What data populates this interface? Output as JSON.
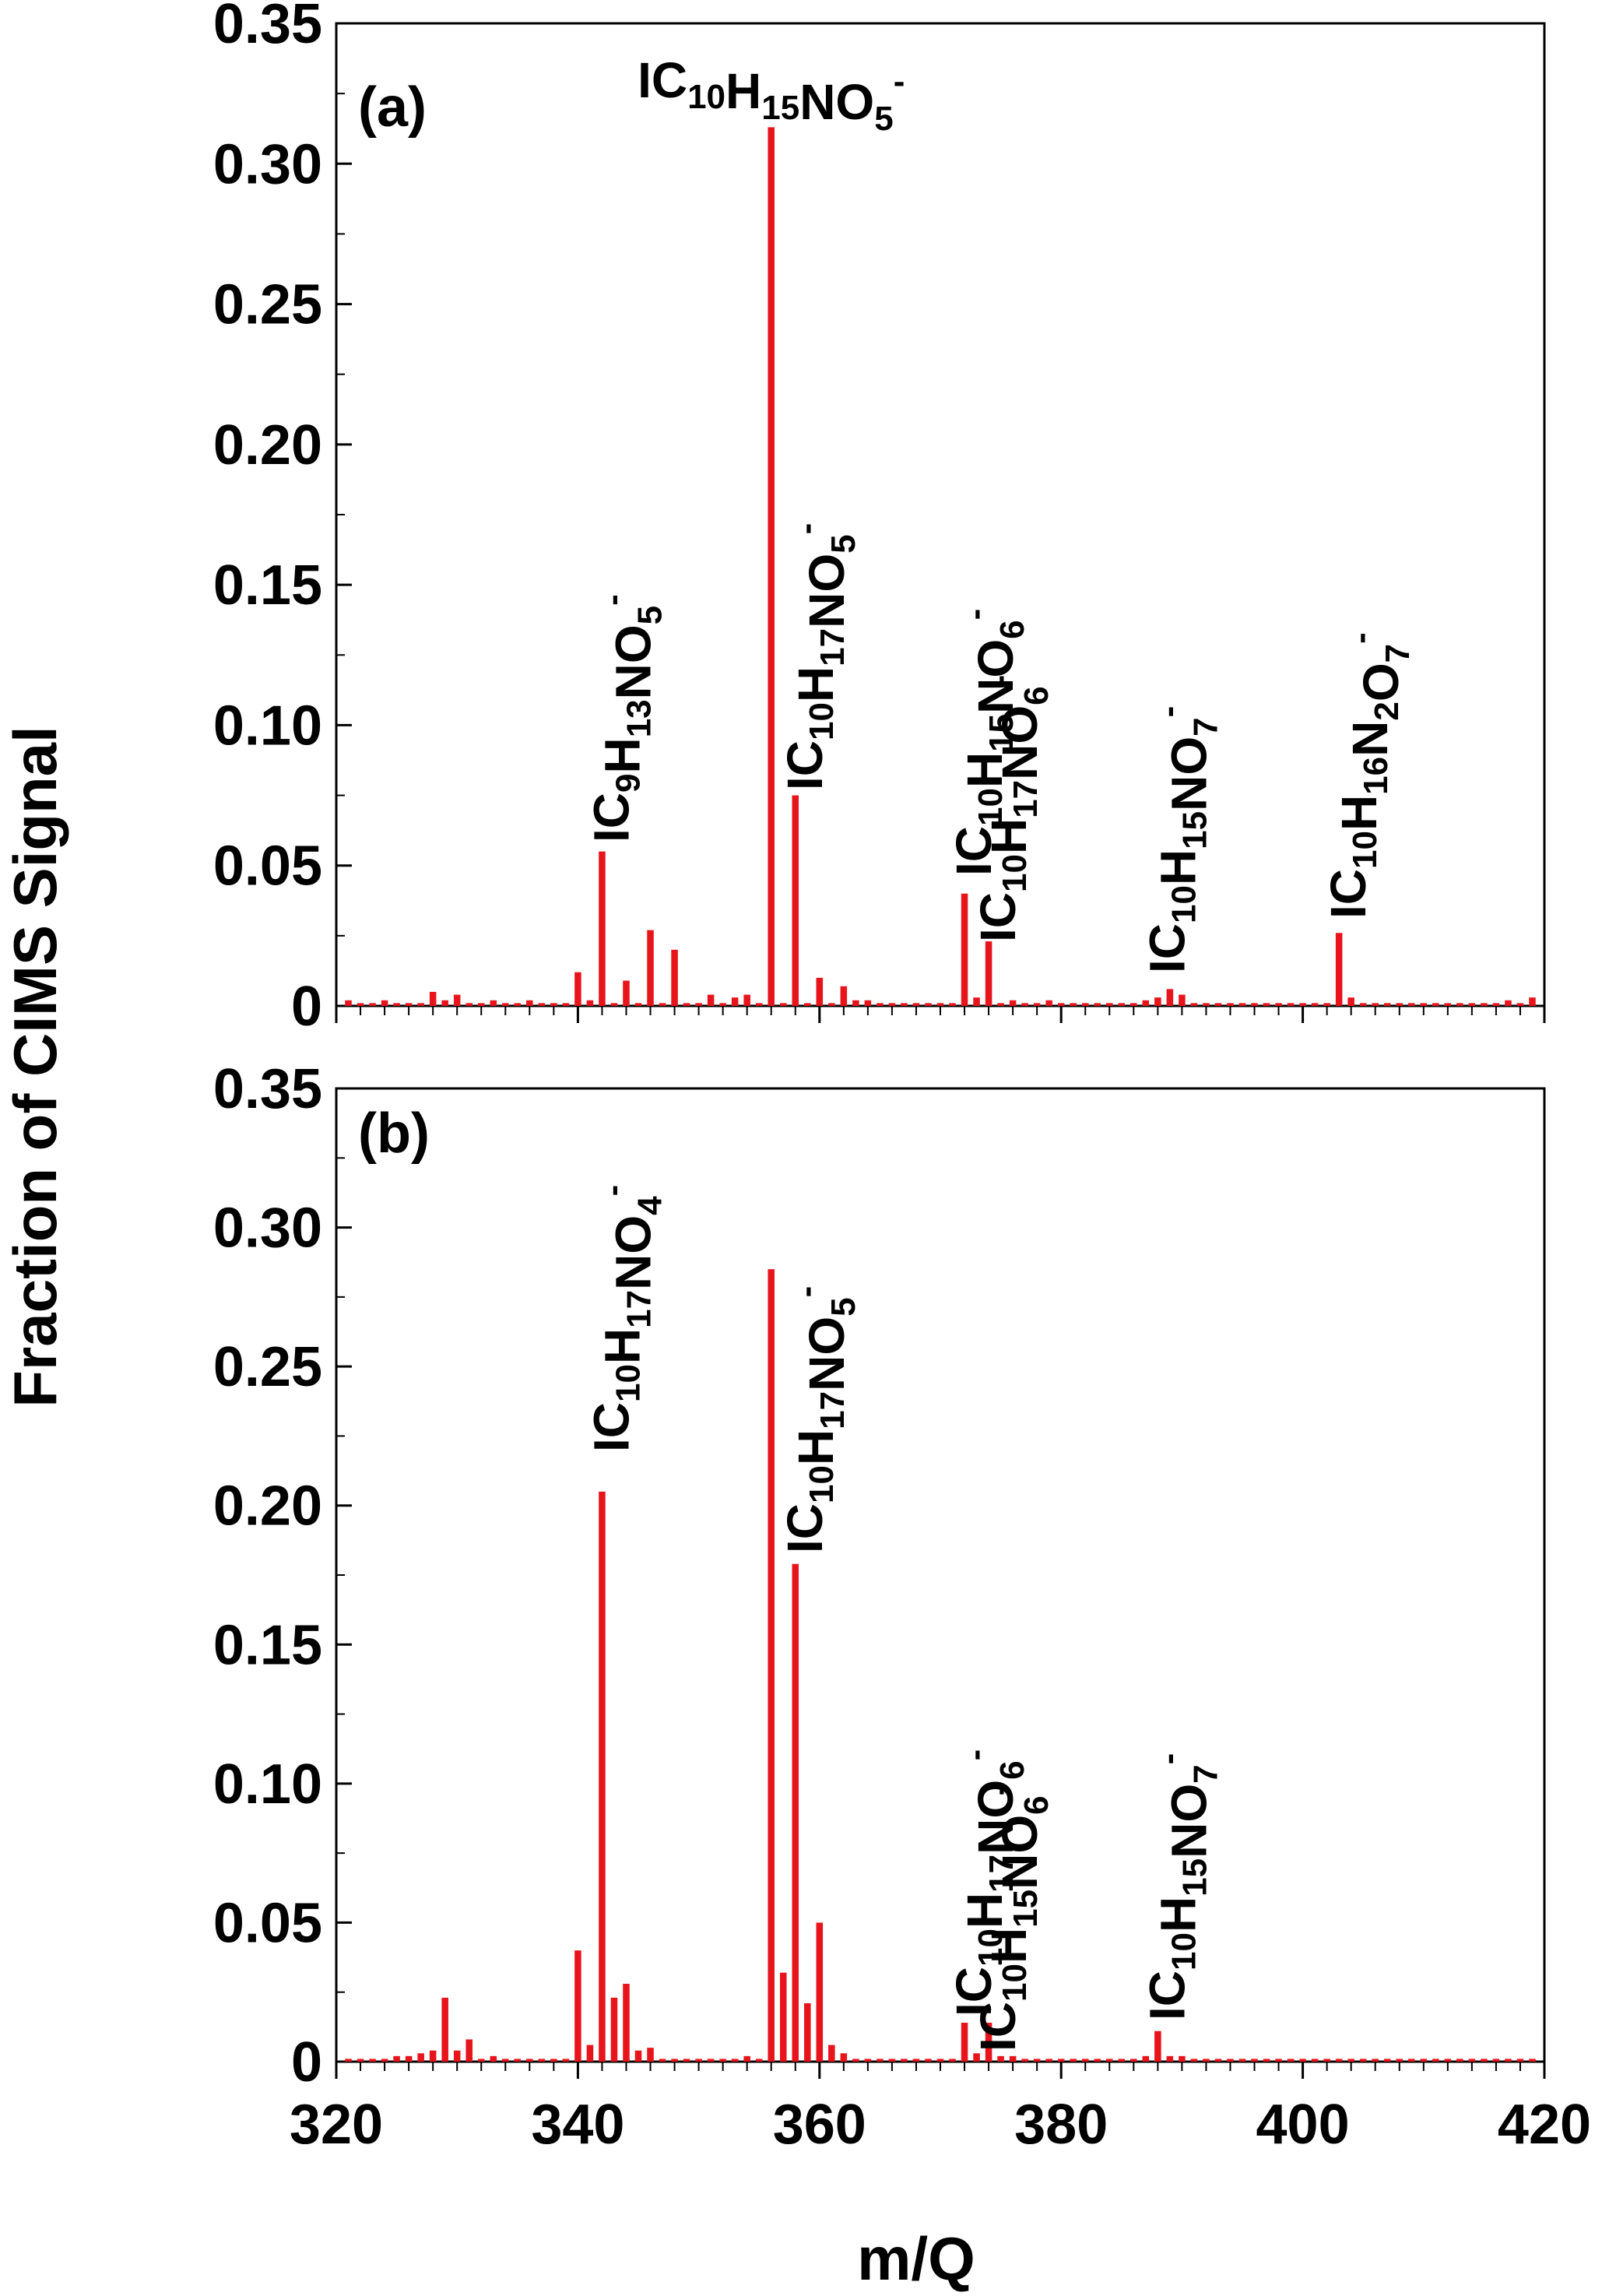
{
  "figure": {
    "ylabel": "Fraction of CIMS Signal",
    "xlabel": "m/Q"
  },
  "chart_data": [
    {
      "type": "bar",
      "panel": "(a)",
      "xlabel": "m/Q",
      "ylabel": "Fraction of CIMS Signal",
      "xlim": [
        320,
        420
      ],
      "ylim": [
        0,
        0.35
      ],
      "xticks": [
        320,
        340,
        360,
        380,
        400,
        420
      ],
      "yticks": [
        0,
        0.05,
        0.1,
        0.15,
        0.2,
        0.25,
        0.3,
        0.35
      ],
      "ytick_labels": [
        "0",
        "0.05",
        "0.10",
        "0.15",
        "0.20",
        "0.25",
        "0.30",
        "0.35"
      ],
      "color": "#e8141c",
      "x": [
        321,
        322,
        323,
        324,
        325,
        326,
        327,
        328,
        329,
        330,
        331,
        332,
        333,
        334,
        335,
        336,
        337,
        338,
        339,
        340,
        341,
        342,
        343,
        344,
        345,
        346,
        347,
        348,
        349,
        350,
        351,
        352,
        353,
        354,
        355,
        356,
        357,
        358,
        359,
        360,
        361,
        362,
        363,
        364,
        365,
        366,
        367,
        368,
        369,
        370,
        371,
        372,
        373,
        374,
        375,
        376,
        377,
        378,
        379,
        380,
        381,
        382,
        383,
        384,
        385,
        386,
        387,
        388,
        389,
        390,
        391,
        392,
        393,
        394,
        395,
        396,
        397,
        398,
        399,
        400,
        401,
        402,
        403,
        404,
        405,
        406,
        407,
        408,
        409,
        410,
        411,
        412,
        413,
        414,
        415,
        416,
        417,
        418,
        419
      ],
      "values": [
        0.002,
        0.001,
        0.001,
        0.002,
        0.001,
        0.001,
        0.001,
        0.005,
        0.002,
        0.004,
        0.001,
        0.001,
        0.002,
        0.001,
        0.001,
        0.002,
        0.001,
        0.001,
        0.001,
        0.012,
        0.002,
        0.055,
        0.001,
        0.009,
        0.001,
        0.027,
        0.001,
        0.02,
        0.001,
        0.001,
        0.004,
        0.001,
        0.003,
        0.004,
        0.001,
        0.313,
        0.001,
        0.075,
        0.001,
        0.01,
        0.001,
        0.007,
        0.002,
        0.002,
        0.001,
        0.001,
        0.001,
        0.001,
        0.001,
        0.001,
        0.001,
        0.04,
        0.003,
        0.023,
        0.001,
        0.002,
        0.001,
        0.001,
        0.002,
        0.001,
        0.001,
        0.001,
        0.001,
        0.001,
        0.001,
        0.001,
        0.002,
        0.003,
        0.006,
        0.004,
        0.001,
        0.001,
        0.001,
        0.001,
        0.001,
        0.001,
        0.001,
        0.001,
        0.001,
        0.001,
        0.001,
        0.001,
        0.026,
        0.003,
        0.001,
        0.001,
        0.001,
        0.001,
        0.001,
        0.001,
        0.001,
        0.001,
        0.001,
        0.001,
        0.001,
        0.001,
        0.002,
        0.001,
        0.003
      ],
      "annotations": [
        {
          "x": 342,
          "parts": [
            [
              "IC",
              ""
            ],
            [
              "9",
              "sub"
            ],
            [
              "H",
              ""
            ],
            [
              "13",
              "sub"
            ],
            [
              "NO",
              ""
            ],
            [
              "5",
              "sub"
            ],
            [
              "-",
              "sup"
            ]
          ]
        },
        {
          "x": 356,
          "parts": [
            [
              "IC",
              ""
            ],
            [
              "10",
              "sub"
            ],
            [
              "H",
              ""
            ],
            [
              "15",
              "sub"
            ],
            [
              "NO",
              ""
            ],
            [
              "5",
              "sub"
            ],
            [
              "-",
              "sup"
            ]
          ]
        },
        {
          "x": 358,
          "parts": [
            [
              "IC",
              ""
            ],
            [
              "10",
              "sub"
            ],
            [
              "H",
              ""
            ],
            [
              "17",
              "sub"
            ],
            [
              "NO",
              ""
            ],
            [
              "5",
              "sub"
            ],
            [
              "-",
              "sup"
            ]
          ]
        },
        {
          "x": 372,
          "parts": [
            [
              "IC",
              ""
            ],
            [
              "10",
              "sub"
            ],
            [
              "H",
              ""
            ],
            [
              "15",
              "sub"
            ],
            [
              "NO",
              ""
            ],
            [
              "6",
              "sub"
            ],
            [
              "-",
              "sup"
            ]
          ]
        },
        {
          "x": 374,
          "parts": [
            [
              "IC",
              ""
            ],
            [
              "10",
              "sub"
            ],
            [
              "H",
              ""
            ],
            [
              "17",
              "sub"
            ],
            [
              "NO",
              ""
            ],
            [
              "6",
              "sub"
            ],
            [
              "-",
              "sup"
            ]
          ]
        },
        {
          "x": 388,
          "parts": [
            [
              "IC",
              ""
            ],
            [
              "10",
              "sub"
            ],
            [
              "H",
              ""
            ],
            [
              "15",
              "sub"
            ],
            [
              "NO",
              ""
            ],
            [
              "7",
              "sub"
            ],
            [
              "-",
              "sup"
            ]
          ]
        },
        {
          "x": 403,
          "parts": [
            [
              "IC",
              ""
            ],
            [
              "10",
              "sub"
            ],
            [
              "H",
              ""
            ],
            [
              "16",
              "sub"
            ],
            [
              "N",
              ""
            ],
            [
              "2",
              "sub"
            ],
            [
              "O",
              ""
            ],
            [
              "7",
              "sub"
            ],
            [
              "-",
              "sup"
            ]
          ]
        }
      ]
    },
    {
      "type": "bar",
      "panel": "(b)",
      "xlabel": "m/Q",
      "ylabel": "Fraction of CIMS Signal",
      "xlim": [
        320,
        420
      ],
      "ylim": [
        0,
        0.35
      ],
      "xticks": [
        320,
        340,
        360,
        380,
        400,
        420
      ],
      "xtick_labels": [
        "320",
        "340",
        "360",
        "380",
        "400",
        "420"
      ],
      "yticks": [
        0,
        0.05,
        0.1,
        0.15,
        0.2,
        0.25,
        0.3,
        0.35
      ],
      "ytick_labels": [
        "0",
        "0.05",
        "0.10",
        "0.15",
        "0.20",
        "0.25",
        "0.30",
        "0.35"
      ],
      "color": "#e8141c",
      "x": [
        321,
        322,
        323,
        324,
        325,
        326,
        327,
        328,
        329,
        330,
        331,
        332,
        333,
        334,
        335,
        336,
        337,
        338,
        339,
        340,
        341,
        342,
        343,
        344,
        345,
        346,
        347,
        348,
        349,
        350,
        351,
        352,
        353,
        354,
        355,
        356,
        357,
        358,
        359,
        360,
        361,
        362,
        363,
        364,
        365,
        366,
        367,
        368,
        369,
        370,
        371,
        372,
        373,
        374,
        375,
        376,
        377,
        378,
        379,
        380,
        381,
        382,
        383,
        384,
        385,
        386,
        387,
        388,
        389,
        390,
        391,
        392,
        393,
        394,
        395,
        396,
        397,
        398,
        399,
        400,
        401,
        402,
        403,
        404,
        405,
        406,
        407,
        408,
        409,
        410,
        411,
        412,
        413,
        414,
        415,
        416,
        417,
        418,
        419
      ],
      "values": [
        0.001,
        0.001,
        0.001,
        0.001,
        0.002,
        0.002,
        0.003,
        0.004,
        0.023,
        0.004,
        0.008,
        0.001,
        0.002,
        0.001,
        0.001,
        0.001,
        0.001,
        0.001,
        0.001,
        0.04,
        0.006,
        0.205,
        0.023,
        0.028,
        0.004,
        0.005,
        0.001,
        0.001,
        0.001,
        0.001,
        0.001,
        0.001,
        0.001,
        0.002,
        0.001,
        0.285,
        0.032,
        0.179,
        0.021,
        0.05,
        0.006,
        0.003,
        0.001,
        0.001,
        0.001,
        0.001,
        0.001,
        0.001,
        0.001,
        0.001,
        0.001,
        0.014,
        0.003,
        0.014,
        0.002,
        0.002,
        0.001,
        0.001,
        0.001,
        0.001,
        0.001,
        0.001,
        0.001,
        0.001,
        0.001,
        0.001,
        0.002,
        0.011,
        0.002,
        0.002,
        0.001,
        0.001,
        0.001,
        0.001,
        0.001,
        0.001,
        0.001,
        0.001,
        0.001,
        0.001,
        0.001,
        0.001,
        0.001,
        0.001,
        0.001,
        0.001,
        0.001,
        0.001,
        0.001,
        0.001,
        0.001,
        0.001,
        0.001,
        0.001,
        0.001,
        0.001,
        0.001,
        0.001,
        0.001
      ],
      "annotations": [
        {
          "x": 342,
          "parts": [
            [
              "IC",
              ""
            ],
            [
              "10",
              "sub"
            ],
            [
              "H",
              ""
            ],
            [
              "17",
              "sub"
            ],
            [
              "NO",
              ""
            ],
            [
              "4",
              "sub"
            ],
            [
              "-",
              "sup"
            ]
          ]
        },
        {
          "x": 358,
          "parts": [
            [
              "IC",
              ""
            ],
            [
              "10",
              "sub"
            ],
            [
              "H",
              ""
            ],
            [
              "17",
              "sub"
            ],
            [
              "NO",
              ""
            ],
            [
              "5",
              "sub"
            ],
            [
              "-",
              "sup"
            ]
          ]
        },
        {
          "x": 372,
          "parts": [
            [
              "IC",
              ""
            ],
            [
              "10",
              "sub"
            ],
            [
              "H",
              ""
            ],
            [
              "17",
              "sub"
            ],
            [
              "NO",
              ""
            ],
            [
              "6",
              "sub"
            ],
            [
              "-",
              "sup"
            ]
          ]
        },
        {
          "x": 374,
          "parts": [
            [
              "IC",
              ""
            ],
            [
              "10",
              "sub"
            ],
            [
              "H",
              ""
            ],
            [
              "15",
              "sub"
            ],
            [
              "NO",
              ""
            ],
            [
              "6",
              "sub"
            ],
            [
              "-",
              "sup"
            ]
          ]
        },
        {
          "x": 388,
          "parts": [
            [
              "IC",
              ""
            ],
            [
              "10",
              "sub"
            ],
            [
              "H",
              ""
            ],
            [
              "15",
              "sub"
            ],
            [
              "NO",
              ""
            ],
            [
              "7",
              "sub"
            ],
            [
              "-",
              "sup"
            ]
          ]
        }
      ]
    }
  ]
}
